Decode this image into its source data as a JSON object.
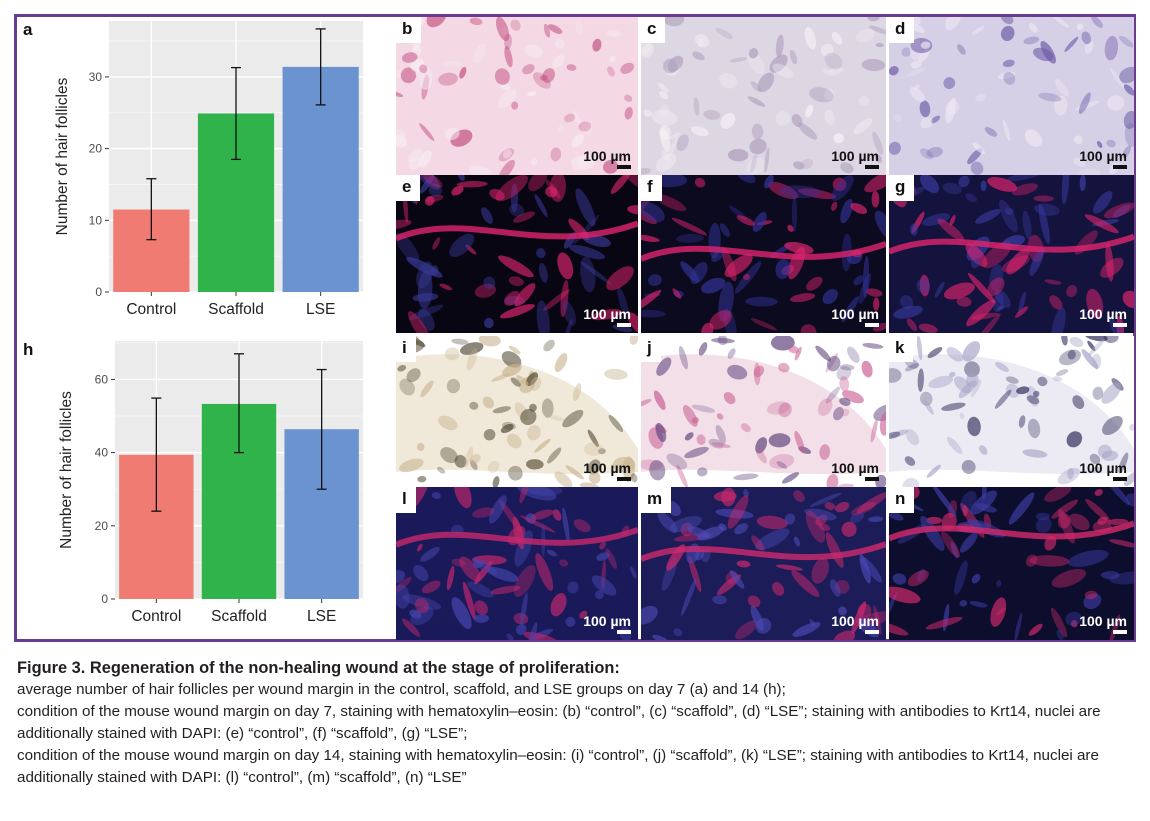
{
  "figure": {
    "chart_a_letter": "a",
    "chart_h_letter": "h",
    "panels": [
      {
        "letter": "b",
        "scale": "100 µm"
      },
      {
        "letter": "c",
        "scale": "100 µm"
      },
      {
        "letter": "d",
        "scale": "100 µm"
      },
      {
        "letter": "e",
        "scale": "100 µm"
      },
      {
        "letter": "f",
        "scale": "100 µm"
      },
      {
        "letter": "g",
        "scale": "100 µm"
      },
      {
        "letter": "i",
        "scale": "100 µm"
      },
      {
        "letter": "j",
        "scale": "100 µm"
      },
      {
        "letter": "k",
        "scale": "100 µm"
      },
      {
        "letter": "l",
        "scale": "100 µm"
      },
      {
        "letter": "m",
        "scale": "100 µm"
      },
      {
        "letter": "n",
        "scale": "100 µm"
      }
    ],
    "frame_color": "#6b3b8c"
  },
  "chart_data": [
    {
      "type": "bar",
      "panel": "a",
      "categories": [
        "Control",
        "Scaffold",
        "LSE"
      ],
      "values": [
        11.5,
        24.9,
        31.4
      ],
      "error": [
        [
          7.3,
          15.8
        ],
        [
          18.5,
          31.3
        ],
        [
          26.1,
          36.7
        ]
      ],
      "colors": [
        "#f07b72",
        "#2fb34a",
        "#6b93cf"
      ],
      "ylabel": "Number of hair follicles",
      "xlabel": "",
      "ylim": [
        0,
        37.8
      ],
      "yticks": [
        0,
        10,
        20,
        30
      ],
      "grid": true
    },
    {
      "type": "bar",
      "panel": "h",
      "categories": [
        "Control",
        "Scaffold",
        "LSE"
      ],
      "values": [
        39.4,
        53.3,
        46.4
      ],
      "error": [
        [
          24.0,
          54.9
        ],
        [
          40.0,
          67.0
        ],
        [
          30.0,
          62.7
        ]
      ],
      "colors": [
        "#f07b72",
        "#2fb34a",
        "#6b93cf"
      ],
      "ylabel": "Number of hair follicles",
      "xlabel": "",
      "ylim": [
        0,
        70.5
      ],
      "yticks": [
        0,
        20,
        40,
        60
      ],
      "grid": true
    }
  ],
  "caption": {
    "title": "Figure 3. Regeneration of the non-healing wound at the stage of proliferation:",
    "lines": [
      "average number of hair follicles per wound margin in the control, scaffold, and LSE groups on day 7 (a) and 14 (h);",
      "condition of the mouse wound margin on day 7, staining with hematoxylin–eosin: (b) “control”, (c) “scaffold”, (d) “LSE”; staining with antibodies to Krt14, nuclei are additionally stained with DAPI: (e) “control”, (f) “scaffold”, (g) “LSE”;",
      "condition of the mouse wound margin on day 14, staining with hematoxylin–eosin: (i) “control”, (j) “scaffold”, (k) “LSE”; staining with antibodies to Krt14, nuclei are additionally stained with DAPI: (l) “control”, (m) “scaffold”, (n) “LSE”"
    ]
  }
}
